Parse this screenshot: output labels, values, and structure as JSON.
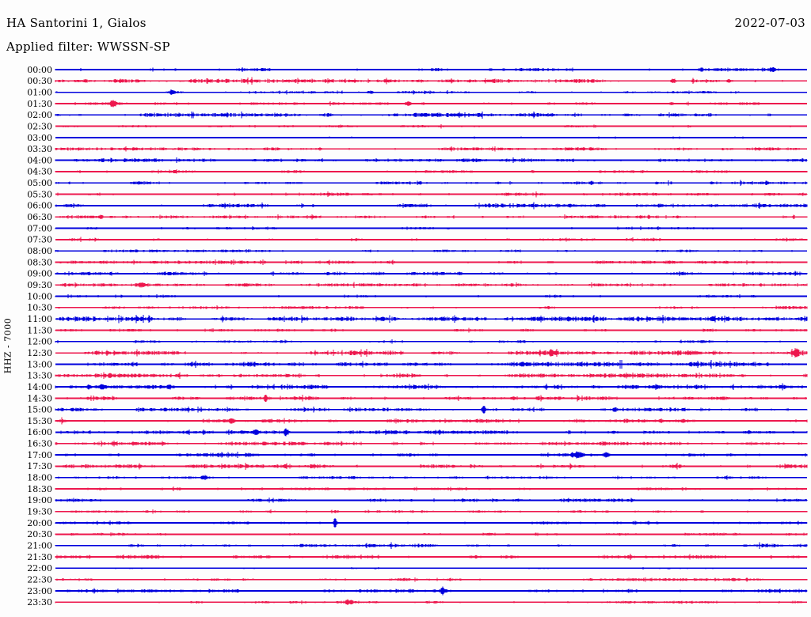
{
  "header": {
    "title": "HA Santorini 1, Gialos",
    "date": "2022-07-03",
    "filter": "Applied filter: WWSSN-SP"
  },
  "axis": {
    "channel": "HHZ - 7000"
  },
  "chart_data": {
    "type": "line",
    "subtype": "helicorder",
    "title": "HA Santorini 1, Gialos",
    "date": "2022-07-03",
    "applied_filter": "WWSSN-SP",
    "channel_scale_label": "HHZ - 7000",
    "minutes_per_row": 30,
    "row_time_range": [
      "00:00",
      "23:30"
    ],
    "legend_position": "none",
    "grid": false,
    "trace_colors": {
      "even_rows": "#0000DD",
      "odd_rows": "#ED174D"
    },
    "rows": [
      {
        "time": "00:00",
        "color": "blue",
        "noise": 0.65,
        "bursts": [
          {
            "t": 0.859,
            "amp": 2.0,
            "w": 4
          },
          {
            "t": 0.954,
            "amp": 1.8,
            "w": 4
          }
        ]
      },
      {
        "time": "00:30",
        "color": "red",
        "noise": 0.75,
        "bursts": [
          {
            "t": 0.822,
            "amp": 2.6,
            "w": 4
          },
          {
            "t": 0.896,
            "amp": 1.8,
            "w": 3
          }
        ]
      },
      {
        "time": "01:00",
        "color": "blue",
        "noise": 0.45,
        "bursts": [
          {
            "t": 0.155,
            "amp": 2.4,
            "w": 3
          },
          {
            "t": 0.42,
            "amp": 1.8,
            "w": 3
          }
        ]
      },
      {
        "time": "01:30",
        "color": "red",
        "noise": 0.5,
        "bursts": [
          {
            "t": 0.077,
            "amp": 3.8,
            "w": 5
          },
          {
            "t": 0.47,
            "amp": 1.8,
            "w": 3
          },
          {
            "t": 0.82,
            "amp": 2.4,
            "w": 3
          }
        ]
      },
      {
        "time": "02:00",
        "color": "blue",
        "noise": 0.75,
        "bursts": []
      },
      {
        "time": "02:30",
        "color": "red",
        "noise": 0.45,
        "bursts": []
      },
      {
        "time": "03:00",
        "color": "blue",
        "noise": 0.35,
        "bursts": []
      },
      {
        "time": "03:30",
        "color": "red",
        "noise": 0.6,
        "bursts": []
      },
      {
        "time": "04:00",
        "color": "blue",
        "noise": 0.7,
        "bursts": []
      },
      {
        "time": "04:30",
        "color": "red",
        "noise": 0.55,
        "bursts": []
      },
      {
        "time": "05:00",
        "color": "blue",
        "noise": 0.6,
        "bursts": []
      },
      {
        "time": "05:30",
        "color": "red",
        "noise": 0.6,
        "bursts": []
      },
      {
        "time": "06:00",
        "color": "blue",
        "noise": 0.7,
        "bursts": []
      },
      {
        "time": "06:30",
        "color": "red",
        "noise": 0.6,
        "bursts": [
          {
            "t": 0.06,
            "amp": 2.2,
            "w": 4
          }
        ]
      },
      {
        "time": "07:00",
        "color": "blue",
        "noise": 0.45,
        "bursts": []
      },
      {
        "time": "07:30",
        "color": "red",
        "noise": 0.5,
        "bursts": []
      },
      {
        "time": "08:00",
        "color": "blue",
        "noise": 0.5,
        "bursts": []
      },
      {
        "time": "08:30",
        "color": "red",
        "noise": 0.6,
        "bursts": []
      },
      {
        "time": "09:00",
        "color": "blue",
        "noise": 0.65,
        "bursts": []
      },
      {
        "time": "09:30",
        "color": "red",
        "noise": 0.6,
        "bursts": [
          {
            "t": 0.115,
            "amp": 2.2,
            "w": 6
          }
        ]
      },
      {
        "time": "10:00",
        "color": "blue",
        "noise": 0.45,
        "bursts": []
      },
      {
        "time": "10:30",
        "color": "red",
        "noise": 0.6,
        "bursts": []
      },
      {
        "time": "11:00",
        "color": "blue",
        "noise": 0.9,
        "bursts": []
      },
      {
        "time": "11:30",
        "color": "red",
        "noise": 0.5,
        "bursts": []
      },
      {
        "time": "12:00",
        "color": "blue",
        "noise": 0.5,
        "bursts": []
      },
      {
        "time": "12:30",
        "color": "red",
        "noise": 0.85,
        "bursts": [
          {
            "t": 0.66,
            "amp": 3.2,
            "w": 3
          },
          {
            "t": 0.985,
            "amp": 4.8,
            "w": 4
          }
        ]
      },
      {
        "time": "13:00",
        "color": "blue",
        "noise": 0.9,
        "bursts": []
      },
      {
        "time": "13:30",
        "color": "red",
        "noise": 0.8,
        "bursts": []
      },
      {
        "time": "14:00",
        "color": "blue",
        "noise": 0.8,
        "bursts": [
          {
            "t": 0.045,
            "amp": 2.8,
            "w": 3
          },
          {
            "t": 0.062,
            "amp": 3.8,
            "w": 3
          }
        ]
      },
      {
        "time": "14:30",
        "color": "red",
        "noise": 0.7,
        "bursts": [
          {
            "t": 0.28,
            "amp": 3.4,
            "w": 3
          }
        ]
      },
      {
        "time": "15:00",
        "color": "blue",
        "noise": 0.65,
        "bursts": [
          {
            "t": 0.57,
            "amp": 4.0,
            "w": 3
          },
          {
            "t": 0.745,
            "amp": 2.8,
            "w": 3
          }
        ]
      },
      {
        "time": "15:30",
        "color": "red",
        "noise": 0.7,
        "bursts": [
          {
            "t": 0.235,
            "amp": 2.8,
            "w": 3
          }
        ]
      },
      {
        "time": "16:00",
        "color": "blue",
        "noise": 0.65,
        "bursts": [
          {
            "t": 0.266,
            "amp": 3.8,
            "w": 3
          },
          {
            "t": 0.307,
            "amp": 4.4,
            "w": 3
          }
        ]
      },
      {
        "time": "16:30",
        "color": "red",
        "noise": 0.7,
        "bursts": []
      },
      {
        "time": "17:00",
        "color": "blue",
        "noise": 0.75,
        "bursts": [
          {
            "t": 0.695,
            "amp": 3.4,
            "w": 6
          },
          {
            "t": 0.733,
            "amp": 3.4,
            "w": 5
          }
        ]
      },
      {
        "time": "17:30",
        "color": "red",
        "noise": 0.75,
        "bursts": []
      },
      {
        "time": "18:00",
        "color": "blue",
        "noise": 0.5,
        "bursts": [
          {
            "t": 0.197,
            "amp": 2.4,
            "w": 5
          }
        ]
      },
      {
        "time": "18:30",
        "color": "red",
        "noise": 0.5,
        "bursts": []
      },
      {
        "time": "19:00",
        "color": "blue",
        "noise": 0.6,
        "bursts": []
      },
      {
        "time": "19:30",
        "color": "red",
        "noise": 0.45,
        "bursts": []
      },
      {
        "time": "20:00",
        "color": "blue",
        "noise": 0.5,
        "bursts": [
          {
            "t": 0.372,
            "amp": 6.8,
            "w": 2.5
          }
        ]
      },
      {
        "time": "20:30",
        "color": "red",
        "noise": 0.5,
        "bursts": []
      },
      {
        "time": "21:00",
        "color": "blue",
        "noise": 0.7,
        "bursts": []
      },
      {
        "time": "21:30",
        "color": "red",
        "noise": 0.7,
        "bursts": []
      },
      {
        "time": "22:00",
        "color": "blue",
        "noise": 0.3,
        "bursts": []
      },
      {
        "time": "22:30",
        "color": "red",
        "noise": 0.55,
        "bursts": []
      },
      {
        "time": "23:00",
        "color": "blue",
        "noise": 0.65,
        "bursts": [
          {
            "t": 0.515,
            "amp": 4.8,
            "w": 2.5
          }
        ]
      },
      {
        "time": "23:30",
        "color": "red",
        "noise": 0.5,
        "bursts": [
          {
            "t": 0.39,
            "amp": 2.8,
            "w": 4
          }
        ]
      }
    ]
  }
}
